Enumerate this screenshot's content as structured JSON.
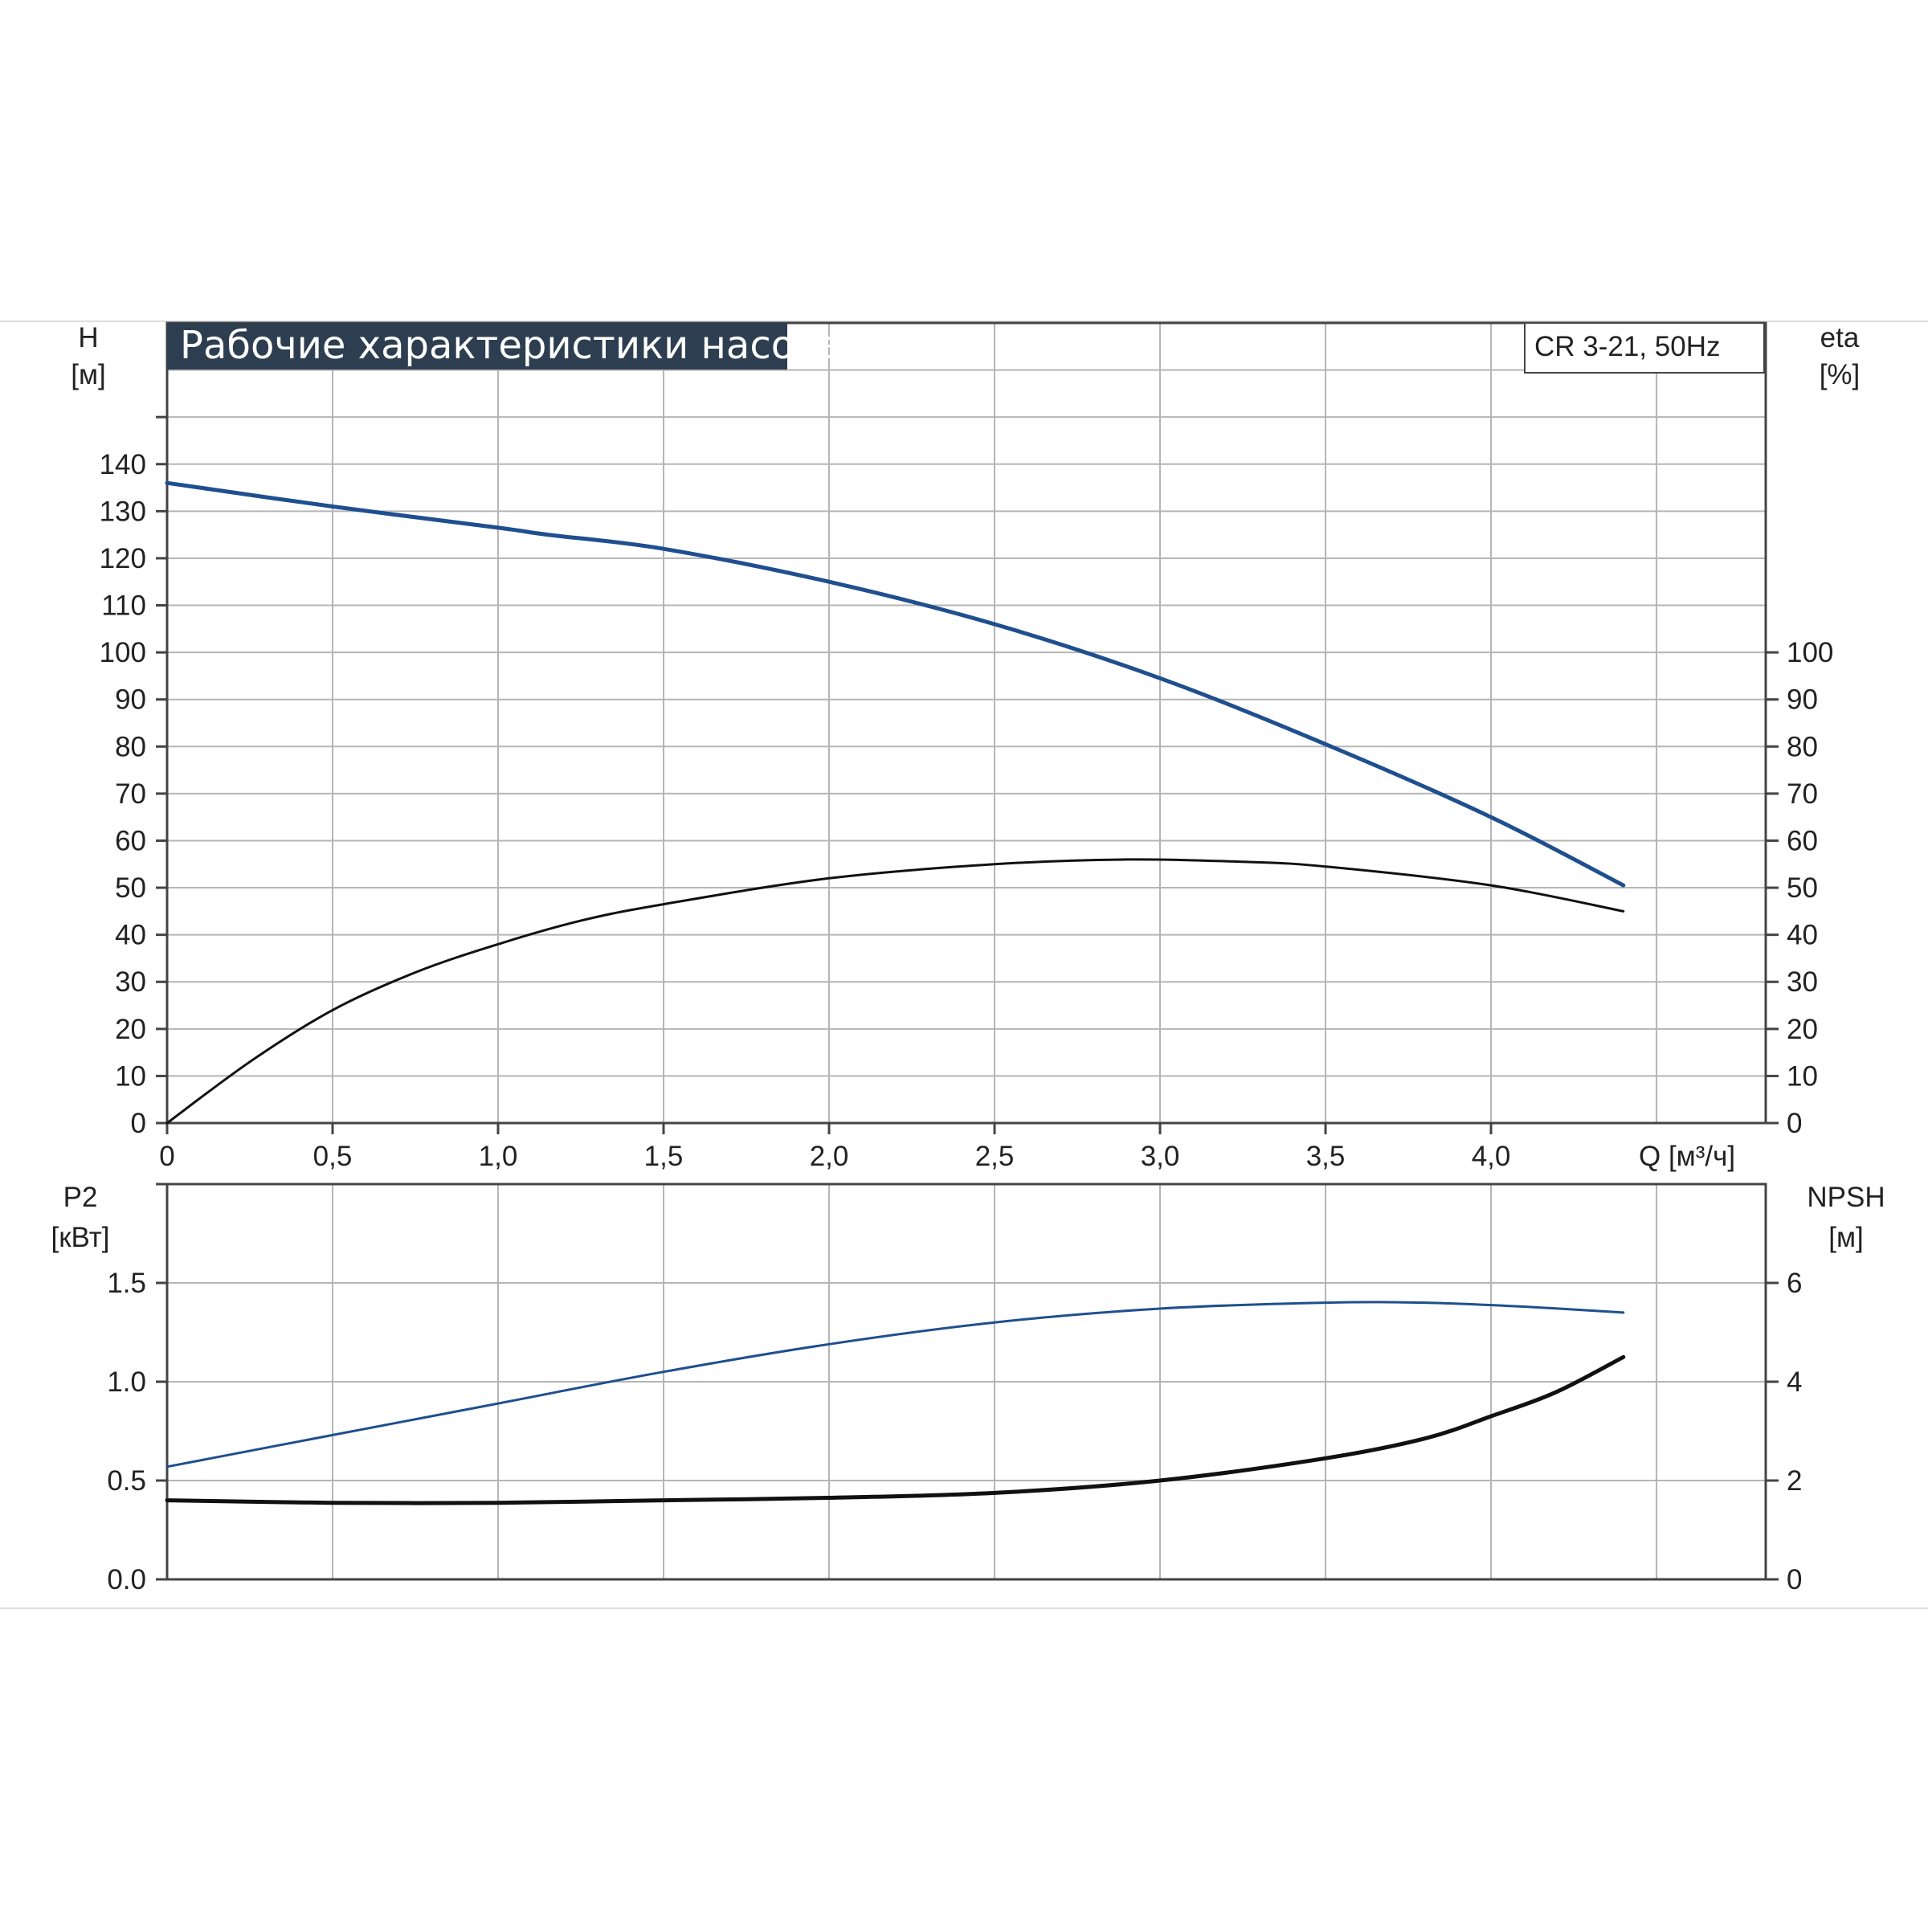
{
  "title": "Рабочие характеристики насоса",
  "model_label": "CR 3-21, 50Hz",
  "colors": {
    "title_bg": "#2d3e50",
    "blue_curve": "#1f4f8f",
    "black_curve": "#111111",
    "grid": "#b5b5b5",
    "frame": "#444444"
  },
  "chart_data": [
    {
      "type": "line",
      "name": "upper",
      "x_ticks": [
        "0",
        "0,5",
        "1,0",
        "1,5",
        "2,0",
        "2,5",
        "3,0",
        "3,5",
        "4,0"
      ],
      "x_label": "Q [м³/ч]",
      "xlim": [
        0,
        4.83
      ],
      "left_axis": {
        "label_line1": "H",
        "label_line2": "[м]",
        "ticks": [
          0,
          10,
          20,
          30,
          40,
          50,
          60,
          70,
          80,
          90,
          100,
          110,
          120,
          130,
          140
        ],
        "ylim": [
          0,
          170
        ]
      },
      "right_axis": {
        "label_line1": "eta",
        "label_line2": "[%]",
        "ticks": [
          0,
          10,
          20,
          30,
          40,
          50,
          60,
          70,
          80,
          90,
          100
        ],
        "ylim": [
          0,
          170
        ]
      },
      "grid": true,
      "series": [
        {
          "axis": "left",
          "color": "blue",
          "x": [
            0,
            0.5,
            1.0,
            1.15,
            1.5,
            2.0,
            2.5,
            3.0,
            3.5,
            4.0,
            4.4
          ],
          "y": [
            136,
            131,
            126.5,
            125,
            122,
            115,
            106,
            94.5,
            80.5,
            65,
            50.5
          ]
        },
        {
          "axis": "right",
          "color": "black",
          "x": [
            0,
            0.25,
            0.5,
            0.75,
            1.0,
            1.25,
            1.5,
            2.0,
            2.5,
            2.9,
            3.25,
            3.5,
            4.0,
            4.4
          ],
          "y": [
            0,
            13,
            24,
            32,
            38,
            43,
            46.5,
            52,
            55,
            56,
            55.5,
            54.5,
            50.5,
            45
          ]
        }
      ]
    },
    {
      "type": "line",
      "name": "lower",
      "xlim": [
        0,
        4.83
      ],
      "left_axis": {
        "label_line1": "P2",
        "label_line2": "[кВт]",
        "ticks": [
          "0.0",
          "0.5",
          "1.0",
          "1.5"
        ],
        "tick_values": [
          0,
          0.5,
          1.0,
          1.5
        ],
        "ylim": [
          0,
          2.0
        ]
      },
      "right_axis": {
        "label_line1": "NPSH",
        "label_line2": "[м]",
        "ticks": [
          "0",
          "2",
          "4",
          "6"
        ],
        "tick_values": [
          0,
          2,
          4,
          6
        ],
        "ylim": [
          0,
          8
        ]
      },
      "grid": true,
      "series": [
        {
          "axis": "left",
          "color": "blue",
          "x": [
            0,
            0.5,
            1.0,
            1.5,
            2.0,
            2.5,
            3.0,
            3.5,
            3.8,
            4.1,
            4.4
          ],
          "y": [
            0.57,
            0.73,
            0.89,
            1.05,
            1.19,
            1.3,
            1.37,
            1.4,
            1.4,
            1.38,
            1.35
          ]
        },
        {
          "axis": "right",
          "color": "black",
          "x": [
            0,
            0.5,
            1.0,
            1.5,
            2.0,
            2.5,
            3.0,
            3.5,
            3.8,
            4.0,
            4.2,
            4.4
          ],
          "y": [
            1.6,
            1.55,
            1.55,
            1.6,
            1.65,
            1.75,
            2.0,
            2.45,
            2.85,
            3.3,
            3.8,
            4.5
          ]
        }
      ]
    }
  ]
}
